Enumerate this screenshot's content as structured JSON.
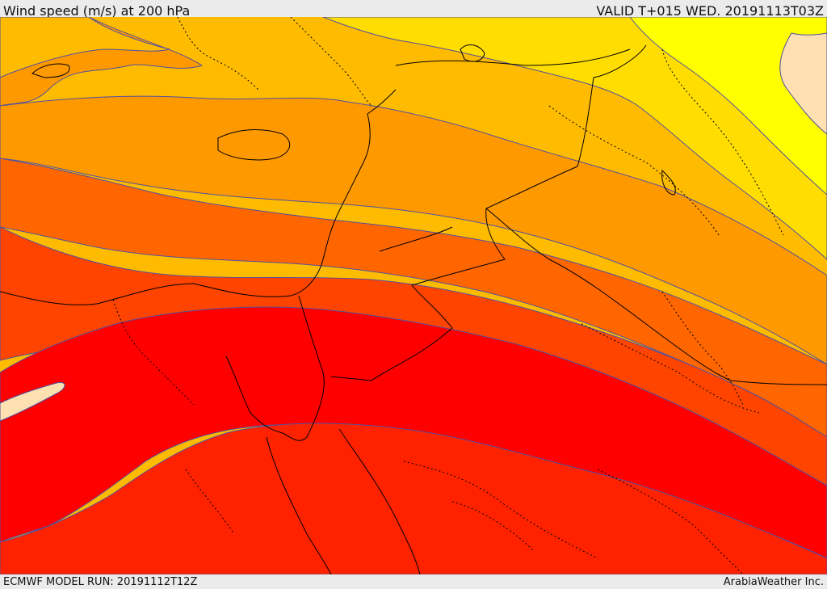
{
  "header": {
    "title": "Wind speed (m/s) at 200 hPa",
    "valid": "VALID T+015 WED. 20191113T03Z"
  },
  "footer": {
    "model_run": "ECMWF MODEL RUN: 20191112T12Z",
    "credit": "ArabiaWeather Inc."
  },
  "map": {
    "colors": {
      "band_1": "#ffffd0",
      "band_2": "#ffff00",
      "band_3": "#ffdd00",
      "band_4": "#ffbb00",
      "band_5": "#ff9900",
      "band_6": "#ff6600",
      "band_7": "#ff4400",
      "band_8": "#ff0000",
      "band_9": "#ff2200",
      "core_high": "#ffe0b0",
      "land_pale": "#ffe0b0",
      "contour": "#5050a0",
      "border": "#000000"
    }
  }
}
